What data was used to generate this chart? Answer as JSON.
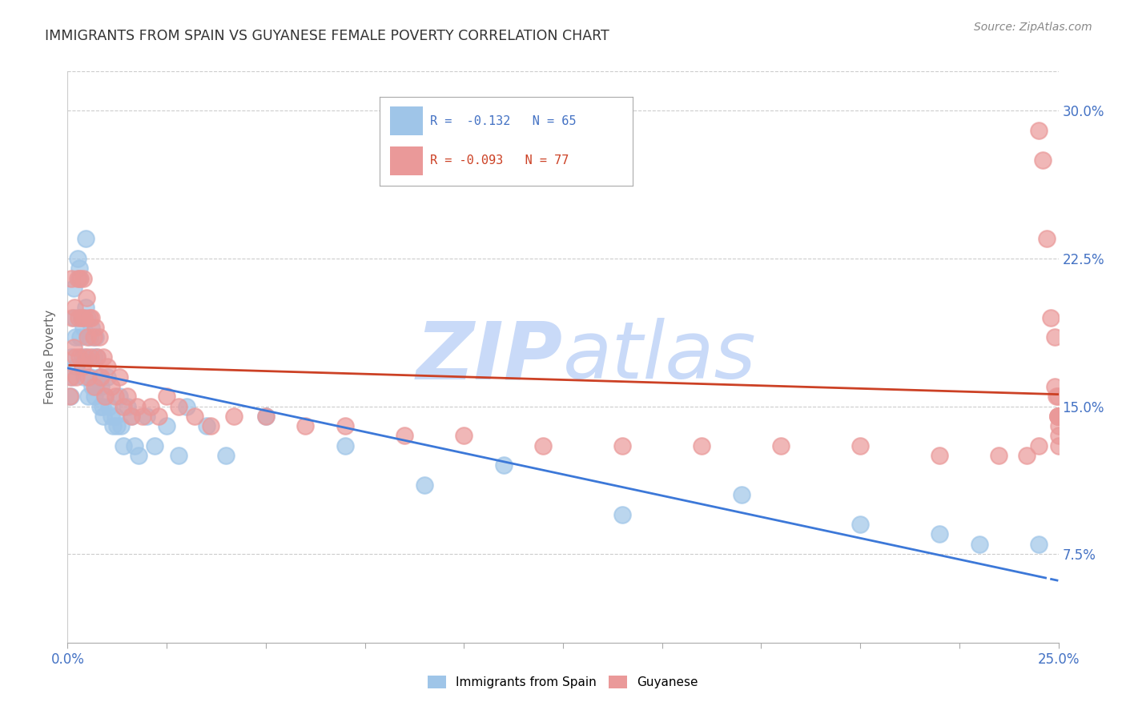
{
  "title": "IMMIGRANTS FROM SPAIN VS GUYANESE FEMALE POVERTY CORRELATION CHART",
  "source": "Source: ZipAtlas.com",
  "ylabel": "Female Poverty",
  "right_yticks": [
    "7.5%",
    "15.0%",
    "22.5%",
    "30.0%"
  ],
  "right_ytick_vals": [
    0.075,
    0.15,
    0.225,
    0.3
  ],
  "legend_label1": "Immigrants from Spain",
  "legend_label2": "Guyanese",
  "legend_r1": "R =  -0.132",
  "legend_n1": "N = 65",
  "legend_r2": "R = -0.093",
  "legend_n2": "N = 77",
  "color_blue": "#9fc5e8",
  "color_pink": "#ea9999",
  "color_trend_blue": "#3c78d8",
  "color_trend_pink": "#cc4125",
  "watermark_color": "#c9daf8",
  "xlim": [
    0.0,
    0.25
  ],
  "ylim": [
    0.03,
    0.32
  ],
  "spain_x": [
    0.0008,
    0.001,
    0.0012,
    0.0015,
    0.0018,
    0.002,
    0.0022,
    0.0025,
    0.003,
    0.003,
    0.0032,
    0.0035,
    0.0038,
    0.004,
    0.0042,
    0.0045,
    0.0045,
    0.0048,
    0.005,
    0.0052,
    0.0055,
    0.0058,
    0.006,
    0.0062,
    0.0065,
    0.0068,
    0.007,
    0.0072,
    0.0075,
    0.008,
    0.0082,
    0.0085,
    0.0088,
    0.009,
    0.0095,
    0.01,
    0.0105,
    0.011,
    0.0115,
    0.012,
    0.0125,
    0.013,
    0.0135,
    0.014,
    0.015,
    0.016,
    0.017,
    0.018,
    0.02,
    0.022,
    0.025,
    0.028,
    0.03,
    0.035,
    0.04,
    0.05,
    0.07,
    0.09,
    0.11,
    0.14,
    0.17,
    0.2,
    0.22,
    0.23,
    0.245
  ],
  "spain_y": [
    0.155,
    0.175,
    0.165,
    0.21,
    0.195,
    0.185,
    0.17,
    0.225,
    0.22,
    0.215,
    0.185,
    0.195,
    0.175,
    0.19,
    0.165,
    0.235,
    0.2,
    0.175,
    0.195,
    0.155,
    0.185,
    0.165,
    0.19,
    0.16,
    0.175,
    0.155,
    0.185,
    0.16,
    0.175,
    0.165,
    0.15,
    0.16,
    0.15,
    0.145,
    0.155,
    0.165,
    0.15,
    0.145,
    0.14,
    0.145,
    0.14,
    0.155,
    0.14,
    0.13,
    0.15,
    0.145,
    0.13,
    0.125,
    0.145,
    0.13,
    0.14,
    0.125,
    0.15,
    0.14,
    0.125,
    0.145,
    0.13,
    0.11,
    0.12,
    0.095,
    0.105,
    0.09,
    0.085,
    0.08,
    0.08
  ],
  "guyanese_x": [
    0.0005,
    0.0008,
    0.001,
    0.0012,
    0.0015,
    0.0018,
    0.002,
    0.0022,
    0.0025,
    0.0028,
    0.003,
    0.0032,
    0.0035,
    0.0038,
    0.004,
    0.0042,
    0.0045,
    0.0048,
    0.005,
    0.0052,
    0.0055,
    0.0058,
    0.006,
    0.0065,
    0.0068,
    0.007,
    0.0075,
    0.008,
    0.0085,
    0.009,
    0.0095,
    0.01,
    0.011,
    0.012,
    0.013,
    0.014,
    0.015,
    0.016,
    0.0175,
    0.019,
    0.021,
    0.023,
    0.025,
    0.028,
    0.032,
    0.036,
    0.042,
    0.05,
    0.06,
    0.07,
    0.085,
    0.1,
    0.12,
    0.14,
    0.16,
    0.18,
    0.2,
    0.22,
    0.235,
    0.242,
    0.245,
    0.245,
    0.246,
    0.247,
    0.248,
    0.249,
    0.249,
    0.2495,
    0.2498,
    0.2499,
    0.2499,
    0.2499,
    0.25,
    0.25,
    0.25,
    0.25,
    0.25
  ],
  "guyanese_y": [
    0.155,
    0.165,
    0.215,
    0.195,
    0.18,
    0.2,
    0.175,
    0.165,
    0.215,
    0.195,
    0.175,
    0.215,
    0.195,
    0.17,
    0.215,
    0.195,
    0.175,
    0.205,
    0.185,
    0.165,
    0.195,
    0.175,
    0.195,
    0.185,
    0.16,
    0.19,
    0.175,
    0.185,
    0.165,
    0.175,
    0.155,
    0.17,
    0.16,
    0.155,
    0.165,
    0.15,
    0.155,
    0.145,
    0.15,
    0.145,
    0.15,
    0.145,
    0.155,
    0.15,
    0.145,
    0.14,
    0.145,
    0.145,
    0.14,
    0.14,
    0.135,
    0.135,
    0.13,
    0.13,
    0.13,
    0.13,
    0.13,
    0.125,
    0.125,
    0.125,
    0.13,
    0.29,
    0.275,
    0.235,
    0.195,
    0.16,
    0.185,
    0.155,
    0.145,
    0.155,
    0.145,
    0.145,
    0.145,
    0.145,
    0.14,
    0.135,
    0.13
  ]
}
